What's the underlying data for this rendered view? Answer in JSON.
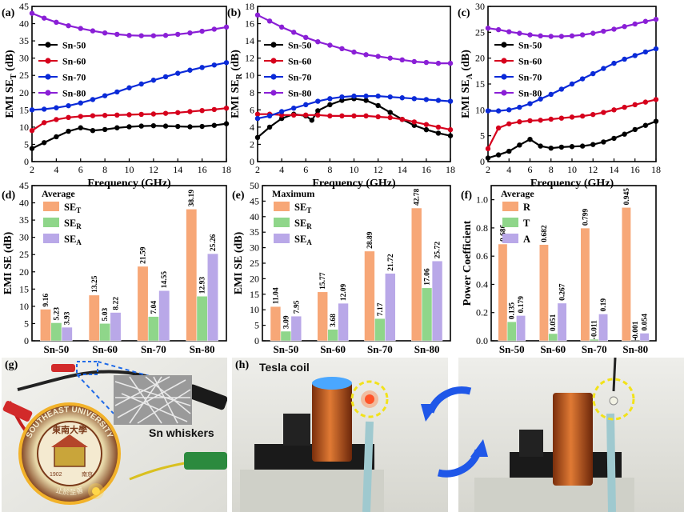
{
  "colors": {
    "sn50": "#000000",
    "sn60": "#d6001c",
    "sn70": "#0a2ad8",
    "sn80": "#8a1fd6",
    "se_t": "#f7a777",
    "se_r": "#8fd68a",
    "se_a": "#b9a8e8",
    "arrow": "#1f57e8",
    "highlight": "#f2e21a"
  },
  "chart_data": [
    {
      "panel": "(a)",
      "type": "line",
      "xlabel": "Frequency (GHz)",
      "ylabel_main": "EMI SE",
      "ylabel_sub": "T",
      "ylabel_unit": " (dB)",
      "xlim": [
        2,
        18
      ],
      "ylim": [
        0,
        45
      ],
      "xticks": [
        2,
        4,
        6,
        8,
        10,
        12,
        14,
        16,
        18
      ],
      "yticks": [
        0,
        5,
        10,
        15,
        20,
        25,
        30,
        35,
        40,
        45
      ],
      "legend_position": "middle-left",
      "series": [
        {
          "name": "Sn-50",
          "color_key": "sn50",
          "x": [
            2,
            3,
            4,
            5,
            6,
            7,
            8,
            9,
            10,
            11,
            12,
            13,
            14,
            15,
            16,
            17,
            18
          ],
          "y": [
            3.8,
            5.5,
            7.2,
            8.8,
            9.8,
            9.0,
            9.3,
            9.8,
            10.1,
            10.3,
            10.4,
            10.3,
            10.2,
            10.1,
            10.2,
            10.5,
            11.0
          ]
        },
        {
          "name": "Sn-60",
          "color_key": "sn60",
          "x": [
            2,
            3,
            4,
            5,
            6,
            7,
            8,
            9,
            10,
            11,
            12,
            13,
            14,
            15,
            16,
            17,
            18
          ],
          "y": [
            9.0,
            11.3,
            12.2,
            12.8,
            13.1,
            13.3,
            13.4,
            13.5,
            13.6,
            13.7,
            13.8,
            14.0,
            14.2,
            14.5,
            14.8,
            15.1,
            15.5
          ]
        },
        {
          "name": "Sn-70",
          "color_key": "sn70",
          "x": [
            2,
            3,
            4,
            5,
            6,
            7,
            8,
            9,
            10,
            11,
            12,
            13,
            14,
            15,
            16,
            17,
            18
          ],
          "y": [
            15.0,
            15.2,
            15.6,
            16.2,
            17.0,
            18.0,
            19.1,
            20.2,
            21.4,
            22.5,
            23.6,
            24.6,
            25.6,
            26.5,
            27.3,
            28.0,
            28.7
          ]
        },
        {
          "name": "Sn-80",
          "color_key": "sn80",
          "x": [
            2,
            3,
            4,
            5,
            6,
            7,
            8,
            9,
            10,
            11,
            12,
            13,
            14,
            15,
            16,
            17,
            18
          ],
          "y": [
            43.0,
            41.6,
            40.4,
            39.4,
            38.6,
            37.9,
            37.3,
            36.9,
            36.6,
            36.5,
            36.5,
            36.6,
            36.9,
            37.3,
            37.8,
            38.4,
            39.0
          ]
        }
      ]
    },
    {
      "panel": "(b)",
      "type": "line",
      "xlabel": "Frequency (GHz)",
      "ylabel_main": "EMI SE",
      "ylabel_sub": "R",
      "ylabel_unit": " (dB)",
      "xlim": [
        2,
        18
      ],
      "ylim": [
        0,
        18
      ],
      "xticks": [
        2,
        4,
        6,
        8,
        10,
        12,
        14,
        16,
        18
      ],
      "yticks": [
        0,
        2,
        4,
        6,
        8,
        10,
        12,
        14,
        16,
        18
      ],
      "legend_position": "middle-left",
      "series": [
        {
          "name": "Sn-50",
          "color_key": "sn50",
          "x": [
            2,
            3,
            4,
            5,
            6,
            6.5,
            7,
            8,
            9,
            10,
            11,
            12,
            13,
            14,
            15,
            16,
            17,
            18
          ],
          "y": [
            2.8,
            4.0,
            5.0,
            5.5,
            5.3,
            4.8,
            5.9,
            6.6,
            7.1,
            7.3,
            7.1,
            6.5,
            5.7,
            4.9,
            4.2,
            3.7,
            3.3,
            3.0
          ]
        },
        {
          "name": "Sn-60",
          "color_key": "sn60",
          "x": [
            2,
            3,
            4,
            5,
            6,
            7,
            8,
            9,
            10,
            11,
            12,
            13,
            14,
            15,
            16,
            17,
            18
          ],
          "y": [
            5.5,
            5.5,
            5.4,
            5.4,
            5.4,
            5.4,
            5.3,
            5.3,
            5.3,
            5.3,
            5.2,
            5.1,
            4.9,
            4.6,
            4.3,
            4.0,
            3.7
          ]
        },
        {
          "name": "Sn-70",
          "color_key": "sn70",
          "x": [
            2,
            3,
            4,
            5,
            6,
            7,
            8,
            9,
            10,
            11,
            12,
            13,
            14,
            15,
            16,
            17,
            18
          ],
          "y": [
            5.0,
            5.3,
            5.8,
            6.2,
            6.6,
            7.0,
            7.3,
            7.5,
            7.6,
            7.6,
            7.6,
            7.5,
            7.4,
            7.3,
            7.2,
            7.1,
            7.0
          ]
        },
        {
          "name": "Sn-80",
          "color_key": "sn80",
          "x": [
            2,
            3,
            4,
            5,
            6,
            7,
            8,
            9,
            10,
            11,
            12,
            13,
            14,
            15,
            16,
            17,
            18
          ],
          "y": [
            17.0,
            16.3,
            15.6,
            15.0,
            14.4,
            13.9,
            13.5,
            13.1,
            12.7,
            12.4,
            12.2,
            12.0,
            11.8,
            11.6,
            11.5,
            11.4,
            11.4
          ]
        }
      ]
    },
    {
      "panel": "(c)",
      "type": "line",
      "xlabel": "Frequency (GHz)",
      "ylabel_main": "EMI SE",
      "ylabel_sub": "A",
      "ylabel_unit": " (dB)",
      "xlim": [
        2,
        18
      ],
      "ylim": [
        0,
        30
      ],
      "xticks": [
        2,
        4,
        6,
        8,
        10,
        12,
        14,
        16,
        18
      ],
      "yticks": [
        0,
        5,
        10,
        15,
        20,
        25,
        30
      ],
      "legend_position": "middle-left",
      "series": [
        {
          "name": "Sn-50",
          "color_key": "sn50",
          "x": [
            2,
            3,
            4,
            5,
            6,
            7,
            8,
            9,
            10,
            11,
            12,
            13,
            14,
            15,
            16,
            17,
            18
          ],
          "y": [
            0.7,
            1.3,
            2.0,
            3.2,
            4.3,
            3.0,
            2.6,
            2.8,
            2.9,
            3.0,
            3.3,
            3.8,
            4.5,
            5.3,
            6.2,
            7.0,
            7.8
          ]
        },
        {
          "name": "Sn-60",
          "color_key": "sn60",
          "x": [
            2,
            3,
            4,
            5,
            6,
            7,
            8,
            9,
            10,
            11,
            12,
            13,
            14,
            15,
            16,
            17,
            18
          ],
          "y": [
            2.5,
            6.5,
            7.3,
            7.7,
            7.9,
            8.0,
            8.2,
            8.4,
            8.6,
            8.8,
            9.1,
            9.5,
            10.0,
            10.5,
            11.0,
            11.5,
            12.0
          ]
        },
        {
          "name": "Sn-70",
          "color_key": "sn70",
          "x": [
            2,
            3,
            4,
            5,
            6,
            7,
            8,
            9,
            10,
            11,
            12,
            13,
            14,
            15,
            16,
            17,
            18
          ],
          "y": [
            9.8,
            9.8,
            10.0,
            10.5,
            11.2,
            12.1,
            13.0,
            14.0,
            15.0,
            16.0,
            17.0,
            18.0,
            19.0,
            19.8,
            20.5,
            21.2,
            21.8
          ]
        },
        {
          "name": "Sn-80",
          "color_key": "sn80",
          "x": [
            2,
            3,
            4,
            5,
            6,
            7,
            8,
            9,
            10,
            11,
            12,
            13,
            14,
            15,
            16,
            17,
            18
          ],
          "y": [
            25.8,
            25.5,
            25.1,
            24.8,
            24.5,
            24.3,
            24.2,
            24.2,
            24.3,
            24.5,
            24.8,
            25.2,
            25.6,
            26.1,
            26.6,
            27.1,
            27.5
          ]
        }
      ]
    },
    {
      "panel": "(d)",
      "type": "bar",
      "legend_title": "Average",
      "ylabel": "EMI SE (dB)",
      "ylim": [
        0,
        45
      ],
      "yticks": [
        0,
        5,
        10,
        15,
        20,
        25,
        30,
        35,
        40,
        45
      ],
      "categories": [
        "Sn-50",
        "Sn-60",
        "Sn-70",
        "Sn-80"
      ],
      "series": [
        {
          "name": "SE",
          "sub": "T",
          "color_key": "se_t",
          "values": [
            9.16,
            13.25,
            21.59,
            38.19
          ],
          "labels": [
            "9.16",
            "13.25",
            "21.59",
            "38.19"
          ]
        },
        {
          "name": "SE",
          "sub": "R",
          "color_key": "se_r",
          "values": [
            5.23,
            5.03,
            7.04,
            12.93
          ],
          "labels": [
            "5.23",
            "5.03",
            "7.04",
            "12.93"
          ]
        },
        {
          "name": "SE",
          "sub": "A",
          "color_key": "se_a",
          "values": [
            3.93,
            8.22,
            14.55,
            25.26
          ],
          "labels": [
            "3.93",
            "8.22",
            "14.55",
            "25.26"
          ]
        }
      ]
    },
    {
      "panel": "(e)",
      "type": "bar",
      "legend_title": "Maximum",
      "ylabel": "EMI SE (dB)",
      "ylim": [
        0,
        50
      ],
      "yticks": [
        0,
        5,
        10,
        15,
        20,
        25,
        30,
        35,
        40,
        45,
        50
      ],
      "categories": [
        "Sn-50",
        "Sn-60",
        "Sn-70",
        "Sn-80"
      ],
      "series": [
        {
          "name": "SE",
          "sub": "T",
          "color_key": "se_t",
          "values": [
            11.04,
            15.77,
            28.89,
            42.78
          ],
          "labels": [
            "11.04",
            "15.77",
            "28.89",
            "42.78"
          ]
        },
        {
          "name": "SE",
          "sub": "R",
          "color_key": "se_r",
          "values": [
            3.09,
            3.68,
            7.17,
            17.06
          ],
          "labels": [
            "3.09",
            "3.68",
            "7.17",
            "17.06"
          ]
        },
        {
          "name": "SE",
          "sub": "A",
          "color_key": "se_a",
          "values": [
            7.95,
            12.09,
            21.72,
            25.72
          ],
          "labels": [
            "7.95",
            "12.09",
            "21.72",
            "25.72"
          ]
        }
      ]
    },
    {
      "panel": "(f)",
      "type": "bar",
      "legend_title": "Average",
      "ylabel": "Power Coefficient",
      "ylim": [
        0,
        1.1
      ],
      "yticks": [
        0.0,
        0.2,
        0.4,
        0.6,
        0.8,
        1.0
      ],
      "ytick_labels": [
        "0.0",
        "0.2",
        "0.4",
        "0.6",
        "0.8",
        "1.0"
      ],
      "categories": [
        "Sn-50",
        "Sn-60",
        "Sn-70",
        "Sn-80"
      ],
      "series": [
        {
          "name": "R",
          "sub": "",
          "color_key": "se_t",
          "values": [
            0.686,
            0.682,
            0.799,
            0.945
          ],
          "labels": [
            "0.686",
            "0.682",
            "0.799",
            "0.945"
          ]
        },
        {
          "name": "T",
          "sub": "",
          "color_key": "se_r",
          "values": [
            0.135,
            0.051,
            0.011,
            0.001
          ],
          "labels": [
            "0.135",
            "0.051",
            "0.011",
            "0.001"
          ]
        },
        {
          "name": "A",
          "sub": "",
          "color_key": "se_a",
          "values": [
            0.179,
            0.267,
            0.19,
            0.054
          ],
          "labels": [
            "0.179",
            "0.267",
            "0.19",
            "0.054"
          ]
        }
      ]
    }
  ],
  "photos": {
    "g": {
      "panel": "(g)",
      "label": "Sn whiskers",
      "seal_text_top": "SOUTHEAST UNIVERSITY",
      "seal_cjk": "東南大學",
      "seal_year": "1902",
      "seal_city": "南京",
      "seal_bottom": "止於至善"
    },
    "h": {
      "panel": "(h)",
      "label": "Tesla coil"
    }
  }
}
